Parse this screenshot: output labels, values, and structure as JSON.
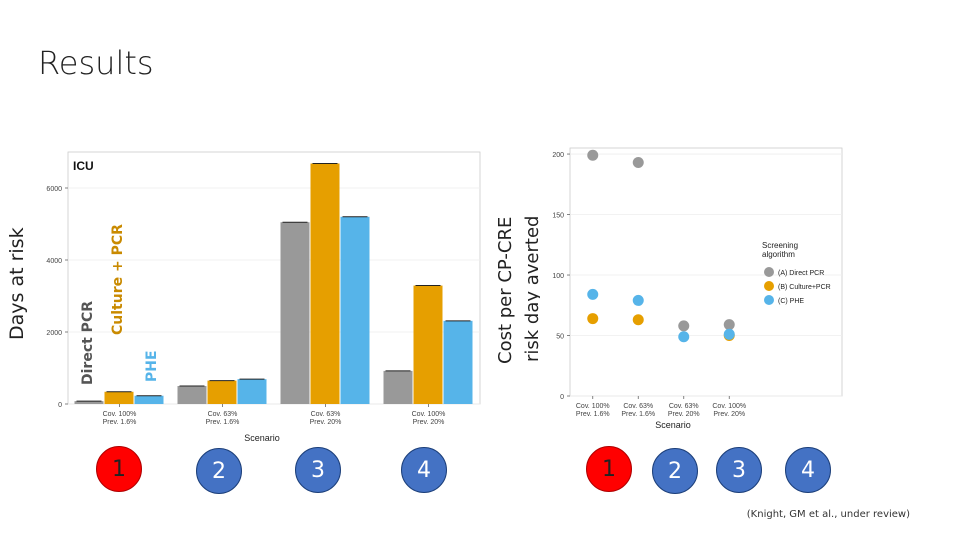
{
  "slide": {
    "title": "Results",
    "citation": "(Knight, GM et al., under review)"
  },
  "left_labels": {
    "days_at_risk": "Days at risk",
    "direct_pcr": "Direct PCR",
    "culture_pcr": "Culture + PCR",
    "phe": "PHE"
  },
  "right_labels": {
    "cost_line1": "Cost per CP-CRE",
    "cost_line2": "risk day averted"
  },
  "colors": {
    "direct_pcr": "#999999",
    "culture_pcr": "#e69f00",
    "phe": "#56b4e9",
    "label_direct": "#555555",
    "label_culture": "#c98a00",
    "label_phe": "#56b4e9"
  },
  "left_badges": [
    "1",
    "2",
    "3",
    "4"
  ],
  "right_badges": [
    "1",
    "2",
    "3",
    "4"
  ],
  "chart_data": [
    {
      "type": "bar",
      "title": "ICU",
      "xlabel": "Scenario",
      "ylabel": "",
      "ylim": [
        0,
        7000
      ],
      "yticks": [
        0,
        2000,
        4000,
        6000
      ],
      "categories": [
        [
          "Cov. 100%",
          "Prev. 1.6%"
        ],
        [
          "Cov. 63%",
          "Prev. 1.6%"
        ],
        [
          "Cov. 63%",
          "Prev. 20%"
        ],
        [
          "Cov. 100%",
          "Prev. 20%"
        ]
      ],
      "series": [
        {
          "name": "Direct PCR",
          "values": [
            80,
            500,
            5050,
            920
          ]
        },
        {
          "name": "Culture + PCR",
          "values": [
            340,
            650,
            6680,
            3290
          ]
        },
        {
          "name": "PHE",
          "values": [
            230,
            690,
            5200,
            2310
          ]
        }
      ]
    },
    {
      "type": "scatter",
      "title": "",
      "xlabel": "Scenario",
      "ylabel": "",
      "ylim": [
        0,
        205
      ],
      "yticks": [
        0,
        50,
        100,
        150,
        200
      ],
      "categories": [
        [
          "Cov. 100%",
          "Prev. 1.6%"
        ],
        [
          "Cov. 63%",
          "Prev. 1.6%"
        ],
        [
          "Cov. 63%",
          "Prev. 20%"
        ],
        [
          "Cov. 100%",
          "Prev. 20%"
        ]
      ],
      "legend_title": [
        "Screening",
        "algorithm"
      ],
      "series": [
        {
          "name": "(A) Direct PCR",
          "values": [
            199,
            193,
            58,
            59
          ]
        },
        {
          "name": "(B) Culture+PCR",
          "values": [
            64,
            63,
            null,
            50
          ]
        },
        {
          "name": "(C) PHE",
          "values": [
            84,
            79,
            49,
            51
          ]
        }
      ]
    }
  ]
}
